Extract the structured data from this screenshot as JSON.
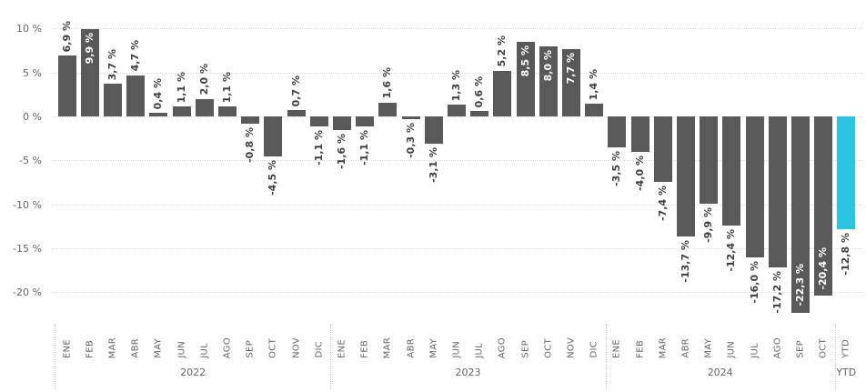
{
  "chart_data": {
    "type": "bar",
    "title": "",
    "xlabel": "",
    "ylabel": "",
    "value_suffix": " %",
    "decimal_separator": ",",
    "groups": [
      {
        "label": "2022",
        "categories": [
          "ENE",
          "FEB",
          "MAR",
          "ABR",
          "MAY",
          "JUN",
          "JUL",
          "AGO",
          "SEP",
          "OCT",
          "NOV",
          "DIC"
        ],
        "values": [
          6.9,
          9.9,
          3.7,
          4.7,
          0.4,
          1.1,
          2.0,
          1.1,
          -0.8,
          -4.5,
          0.7,
          -1.1
        ]
      },
      {
        "label": "2023",
        "categories": [
          "ENE",
          "FEB",
          "MAR",
          "ABR",
          "MAY",
          "JUN",
          "JUL",
          "AGO",
          "SEP",
          "OCT",
          "NOV",
          "DIC"
        ],
        "values": [
          -1.6,
          -1.1,
          1.6,
          -0.3,
          -3.1,
          1.3,
          0.6,
          5.2,
          8.5,
          8.0,
          7.7,
          1.4
        ]
      },
      {
        "label": "2024",
        "categories": [
          "ENE",
          "FEB",
          "MAR",
          "ABR",
          "MAY",
          "JUN",
          "JUL",
          "AGO",
          "SEP",
          "OCT"
        ],
        "values": [
          -3.5,
          -4.0,
          -7.4,
          -13.7,
          -9.9,
          -12.4,
          -16.0,
          -17.2,
          -22.3,
          -20.4
        ]
      },
      {
        "label": "YTD",
        "categories": [
          "YTD"
        ],
        "values": [
          -12.8
        ]
      }
    ],
    "yticks": [
      10,
      5,
      0,
      -5,
      -10,
      -15,
      -20
    ],
    "ylim": [
      -24,
      12.5
    ],
    "grid": "horizontal-dotted",
    "legend": null,
    "highlight": {
      "group": "YTD",
      "category": "YTD"
    },
    "inside_value_labels": [
      {
        "group": "2022",
        "category": "FEB"
      },
      {
        "group": "2023",
        "category": "SEP"
      },
      {
        "group": "2023",
        "category": "OCT"
      },
      {
        "group": "2023",
        "category": "NOV"
      },
      {
        "group": "2024",
        "category": "SEP"
      },
      {
        "group": "2024",
        "category": "OCT"
      }
    ],
    "colors": {
      "bar": "#595959",
      "highlight": "#2bc4e2",
      "value_label": "#3f3f3f",
      "value_label_inside": "#ffffff",
      "axis_text": "#666666",
      "gridline": "#d9d9d9",
      "separator": "#c9c9c9"
    }
  }
}
